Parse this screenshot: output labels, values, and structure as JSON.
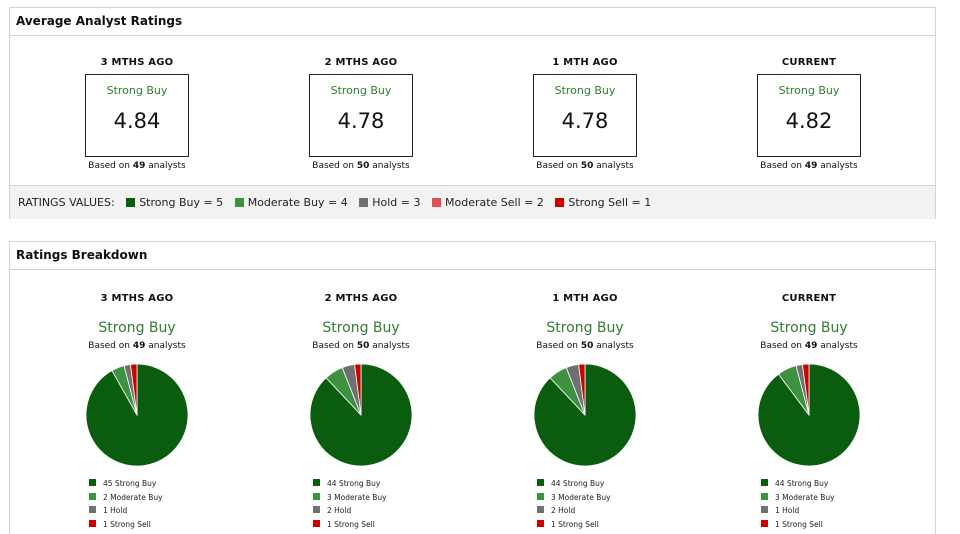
{
  "average_ratings": {
    "title": "Average Analyst Ratings",
    "columns": [
      {
        "period": "3 MTHS AGO",
        "rating": "Strong Buy",
        "score": "4.84",
        "based_prefix": "Based on",
        "analysts": "49",
        "based_suffix": "analysts"
      },
      {
        "period": "2 MTHS AGO",
        "rating": "Strong Buy",
        "score": "4.78",
        "based_prefix": "Based on",
        "analysts": "50",
        "based_suffix": "analysts"
      },
      {
        "period": "1 MTH AGO",
        "rating": "Strong Buy",
        "score": "4.78",
        "based_prefix": "Based on",
        "analysts": "50",
        "based_suffix": "analysts"
      },
      {
        "period": "CURRENT",
        "rating": "Strong Buy",
        "score": "4.82",
        "based_prefix": "Based on",
        "analysts": "49",
        "based_suffix": "analysts"
      }
    ]
  },
  "ratings_values": {
    "label": "RATINGS VALUES:",
    "items": [
      {
        "label": "Strong Buy = 5",
        "color": "#0a5c0f"
      },
      {
        "label": "Moderate Buy = 4",
        "color": "#3d9140"
      },
      {
        "label": "Hold = 3",
        "color": "#707070"
      },
      {
        "label": "Moderate Sell = 2",
        "color": "#e05050"
      },
      {
        "label": "Strong Sell = 1",
        "color": "#cc0000"
      }
    ]
  },
  "ratings_breakdown": {
    "title": "Ratings Breakdown",
    "colors": {
      "strong_buy": "#0a5c0f",
      "moderate_buy": "#3d9140",
      "hold": "#707070",
      "strong_sell": "#cc0000",
      "slice_border": "#ffffff"
    }
  },
  "chart_data": [
    {
      "type": "pie",
      "title": "3 MTHS AGO",
      "subtitle": "Strong Buy",
      "based_prefix": "Based on",
      "analysts": "49",
      "based_suffix": "analysts",
      "slices": [
        {
          "name": "Strong Buy",
          "value": 45,
          "label": "45 Strong Buy",
          "color": "#0a5c0f"
        },
        {
          "name": "Moderate Buy",
          "value": 2,
          "label": "2 Moderate Buy",
          "color": "#3d9140"
        },
        {
          "name": "Hold",
          "value": 1,
          "label": "1 Hold",
          "color": "#707070"
        },
        {
          "name": "Strong Sell",
          "value": 1,
          "label": "1 Strong Sell",
          "color": "#cc0000"
        }
      ]
    },
    {
      "type": "pie",
      "title": "2 MTHS AGO",
      "subtitle": "Strong Buy",
      "based_prefix": "Based on",
      "analysts": "50",
      "based_suffix": "analysts",
      "slices": [
        {
          "name": "Strong Buy",
          "value": 44,
          "label": "44 Strong Buy",
          "color": "#0a5c0f"
        },
        {
          "name": "Moderate Buy",
          "value": 3,
          "label": "3 Moderate Buy",
          "color": "#3d9140"
        },
        {
          "name": "Hold",
          "value": 2,
          "label": "2 Hold",
          "color": "#707070"
        },
        {
          "name": "Strong Sell",
          "value": 1,
          "label": "1 Strong Sell",
          "color": "#cc0000"
        }
      ]
    },
    {
      "type": "pie",
      "title": "1 MTH AGO",
      "subtitle": "Strong Buy",
      "based_prefix": "Based on",
      "analysts": "50",
      "based_suffix": "analysts",
      "slices": [
        {
          "name": "Strong Buy",
          "value": 44,
          "label": "44 Strong Buy",
          "color": "#0a5c0f"
        },
        {
          "name": "Moderate Buy",
          "value": 3,
          "label": "3 Moderate Buy",
          "color": "#3d9140"
        },
        {
          "name": "Hold",
          "value": 2,
          "label": "2 Hold",
          "color": "#707070"
        },
        {
          "name": "Strong Sell",
          "value": 1,
          "label": "1 Strong Sell",
          "color": "#cc0000"
        }
      ]
    },
    {
      "type": "pie",
      "title": "CURRENT",
      "subtitle": "Strong Buy",
      "based_prefix": "Based on",
      "analysts": "49",
      "based_suffix": "analysts",
      "slices": [
        {
          "name": "Strong Buy",
          "value": 44,
          "label": "44 Strong Buy",
          "color": "#0a5c0f"
        },
        {
          "name": "Moderate Buy",
          "value": 3,
          "label": "3 Moderate Buy",
          "color": "#3d9140"
        },
        {
          "name": "Hold",
          "value": 1,
          "label": "1 Hold",
          "color": "#707070"
        },
        {
          "name": "Strong Sell",
          "value": 1,
          "label": "1 Strong Sell",
          "color": "#cc0000"
        }
      ]
    }
  ]
}
